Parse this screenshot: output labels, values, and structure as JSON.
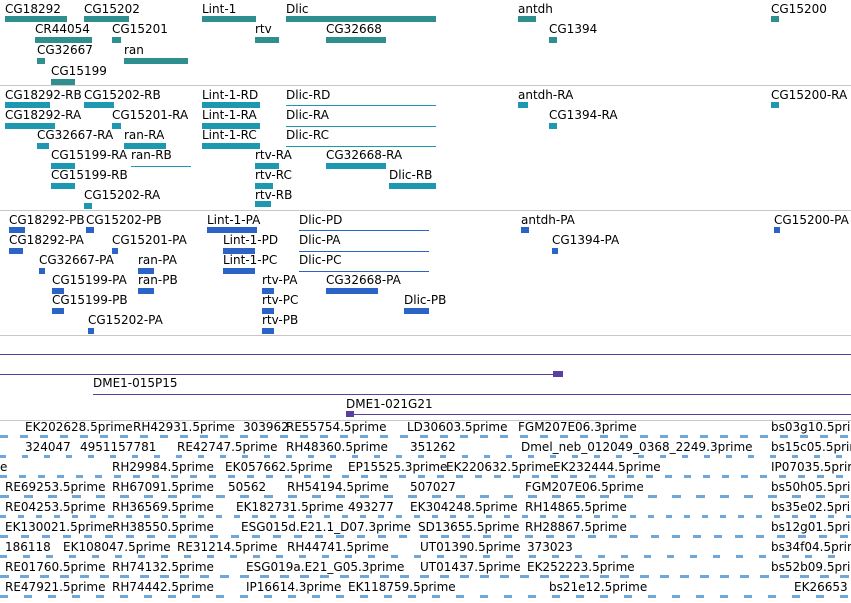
{
  "colors": {
    "gene": "#2f8f8f",
    "transcript": "#1e98b0",
    "cds": "#2b63c6",
    "bac": "#5a3fa0",
    "est": "#6fa8d8",
    "separator": "#c8c8c8"
  },
  "genes": [
    {
      "label": "CG18292"
    },
    {
      "label": "CG15202"
    },
    {
      "label": "Lint-1"
    },
    {
      "label": "Dlic"
    },
    {
      "label": "antdh"
    },
    {
      "label": "CG15200"
    },
    {
      "label": "CR44054"
    },
    {
      "label": "CG15201"
    },
    {
      "label": "rtv"
    },
    {
      "label": "CG32668"
    },
    {
      "label": "CG1394"
    },
    {
      "label": "CG32667"
    },
    {
      "label": "ran"
    },
    {
      "label": "CG15199"
    }
  ],
  "transcripts": [
    {
      "label": "CG18292-RB"
    },
    {
      "label": "CG15202-RB"
    },
    {
      "label": "Lint-1-RD"
    },
    {
      "label": "Dlic-RD"
    },
    {
      "label": "antdh-RA"
    },
    {
      "label": "CG15200-RA"
    },
    {
      "label": "CG18292-RA"
    },
    {
      "label": "CG15201-RA"
    },
    {
      "label": "Lint-1-RA"
    },
    {
      "label": "Dlic-RA"
    },
    {
      "label": "CG1394-RA"
    },
    {
      "label": "CG32667-RA"
    },
    {
      "label": "ran-RA"
    },
    {
      "label": "Lint-1-RC"
    },
    {
      "label": "Dlic-RC"
    },
    {
      "label": "CG15199-RA"
    },
    {
      "label": "ran-RB"
    },
    {
      "label": "rtv-RA"
    },
    {
      "label": "CG32668-RA"
    },
    {
      "label": "CG15199-RB"
    },
    {
      "label": "rtv-RC"
    },
    {
      "label": "Dlic-RB"
    },
    {
      "label": "CG15202-RA"
    },
    {
      "label": "rtv-RB"
    }
  ],
  "proteins": [
    {
      "label": "CG18292-PB"
    },
    {
      "label": "CG15202-PB"
    },
    {
      "label": "Lint-1-PA"
    },
    {
      "label": "Dlic-PD"
    },
    {
      "label": "antdh-PA"
    },
    {
      "label": "CG15200-PA"
    },
    {
      "label": "CG18292-PA"
    },
    {
      "label": "CG15201-PA"
    },
    {
      "label": "Lint-1-PD"
    },
    {
      "label": "Dlic-PA"
    },
    {
      "label": "CG1394-PA"
    },
    {
      "label": "CG32667-PA"
    },
    {
      "label": "ran-PA"
    },
    {
      "label": "Lint-1-PC"
    },
    {
      "label": "Dlic-PC"
    },
    {
      "label": "CG15199-PA"
    },
    {
      "label": "ran-PB"
    },
    {
      "label": "rtv-PA"
    },
    {
      "label": "CG32668-PA"
    },
    {
      "label": "CG15199-PB"
    },
    {
      "label": "rtv-PC"
    },
    {
      "label": "Dlic-PB"
    },
    {
      "label": "CG15202-PA"
    },
    {
      "label": "rtv-PB"
    }
  ],
  "bacs": [
    {
      "label": "DME1-015P15"
    },
    {
      "label": "DME1-021G21"
    }
  ],
  "ests": [
    {
      "label": "EK202628.5prime"
    },
    {
      "label": "RH42931.5prime"
    },
    {
      "label": "303962"
    },
    {
      "label": "RE55754.5prime"
    },
    {
      "label": "LD30603.5prime"
    },
    {
      "label": "FGM207E06.3prime"
    },
    {
      "label": "bs03g10.5prim"
    },
    {
      "label": "324047"
    },
    {
      "label": "4951157781"
    },
    {
      "label": "RE42747.5prime"
    },
    {
      "label": "RH48360.5prime"
    },
    {
      "label": "351262"
    },
    {
      "label": "Dmel_neb_012049_0368_2249.3prime"
    },
    {
      "label": "bs15c05.5prim"
    },
    {
      "label": "e"
    },
    {
      "label": "RH29984.5prime"
    },
    {
      "label": "EK057662.5prime"
    },
    {
      "label": "EP15525.3prime"
    },
    {
      "label": "EK220632.5prime"
    },
    {
      "label": "EK232444.5prime"
    },
    {
      "label": "IP07035.5prim"
    },
    {
      "label": "RE69253.5prime"
    },
    {
      "label": "RH67091.5prime"
    },
    {
      "label": "50562"
    },
    {
      "label": "RH54194.5prime"
    },
    {
      "label": "507027"
    },
    {
      "label": "FGM207E06.5prime"
    },
    {
      "label": "bs50h05.5prim"
    },
    {
      "label": "RE04253.5prime"
    },
    {
      "label": "RH36569.5prime"
    },
    {
      "label": "EK182731.5prime"
    },
    {
      "label": "493277"
    },
    {
      "label": "EK304248.5prime"
    },
    {
      "label": "RH14865.5prime"
    },
    {
      "label": "bs35e02.5prim"
    },
    {
      "label": "EK130021.5prime"
    },
    {
      "label": "RH38550.5prime"
    },
    {
      "label": "ESG015d.E21.1_D07.3prime"
    },
    {
      "label": "SD13655.5prime"
    },
    {
      "label": "RH28867.5prime"
    },
    {
      "label": "bs12g01.5prim"
    },
    {
      "label": "186118"
    },
    {
      "label": "EK108047.5prime"
    },
    {
      "label": "RE31214.5prime"
    },
    {
      "label": "RH44741.5prime"
    },
    {
      "label": "UT01390.5prime"
    },
    {
      "label": "373023"
    },
    {
      "label": "bs34f04.5prim"
    },
    {
      "label": "RE01760.5prime"
    },
    {
      "label": "RH74132.5prime"
    },
    {
      "label": "ESG019a.E21_G05.3prime"
    },
    {
      "label": "UT01437.5prime"
    },
    {
      "label": "EK252223.5prime"
    },
    {
      "label": "bs52b09.5prim"
    },
    {
      "label": "RE47921.5prime"
    },
    {
      "label": "RH74442.5prime"
    },
    {
      "label": "IP16614.3prime"
    },
    {
      "label": "EK118759.5prime"
    },
    {
      "label": "bs21e12.5prime"
    },
    {
      "label": "EK26653"
    }
  ]
}
